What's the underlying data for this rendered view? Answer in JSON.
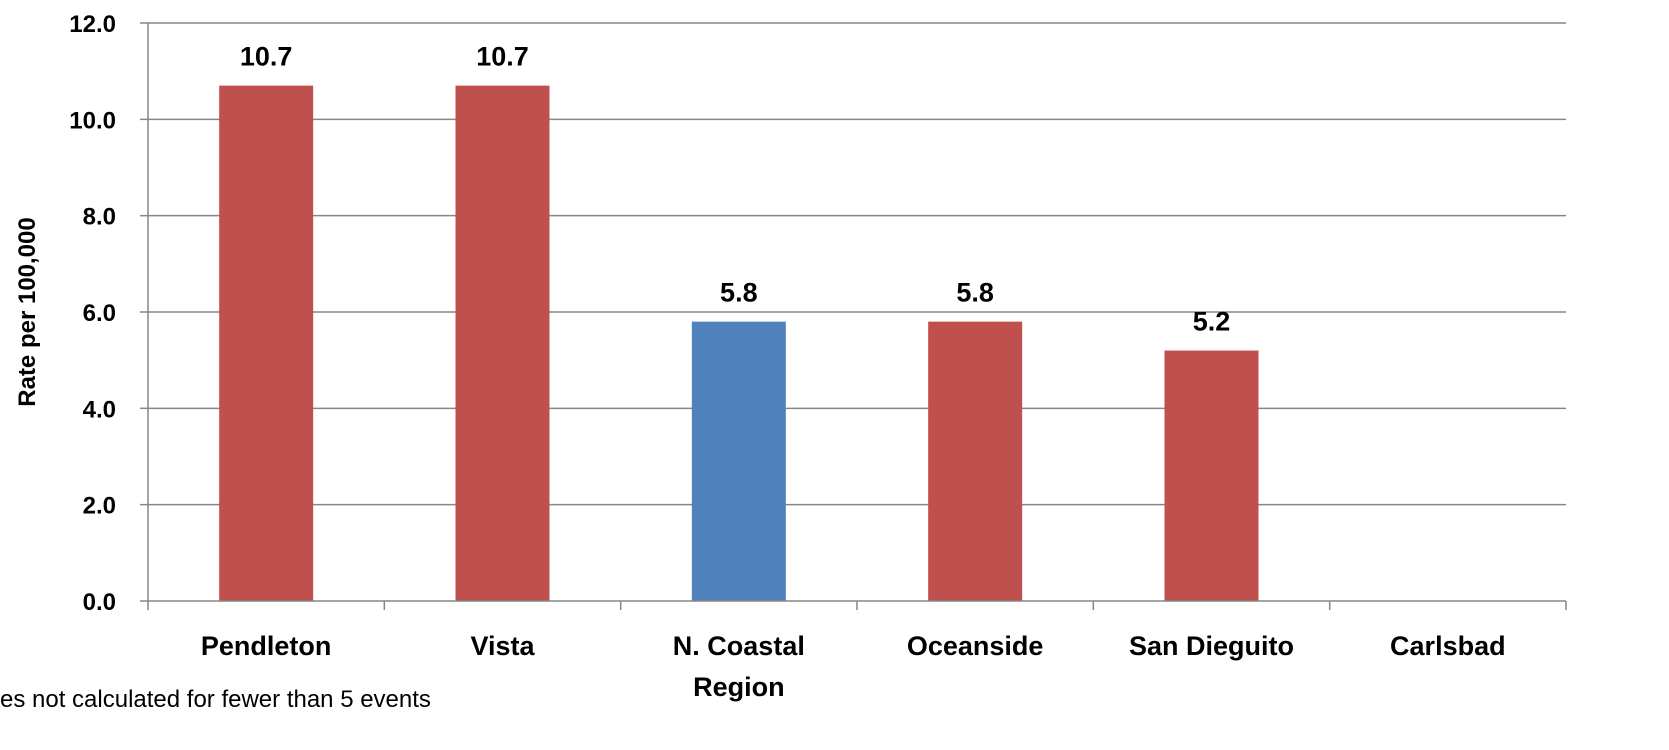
{
  "chart_data": {
    "type": "bar",
    "categories": [
      "Pendleton",
      "Vista",
      "N. Coastal Region",
      "Oceanside",
      "San Dieguito",
      "Carlsbad"
    ],
    "category_lines": [
      [
        "Pendleton"
      ],
      [
        "Vista"
      ],
      [
        "N. Coastal",
        "Region"
      ],
      [
        "Oceanside"
      ],
      [
        "San Dieguito"
      ],
      [
        "Carlsbad"
      ]
    ],
    "values": [
      10.7,
      10.7,
      5.8,
      5.8,
      5.2,
      null
    ],
    "data_labels": [
      "10.7",
      "10.7",
      "5.8",
      "5.8",
      "5.2",
      ""
    ],
    "bar_colors": [
      "#C0504D",
      "#C0504D",
      "#4F81BD",
      "#C0504D",
      "#C0504D",
      "#C0504D"
    ],
    "title": "",
    "xlabel": "",
    "ylabel": "Rate per 100,000",
    "ylim": [
      0,
      12
    ],
    "yticks": [
      "0.0",
      "2.0",
      "4.0",
      "6.0",
      "8.0",
      "10.0",
      "12.0"
    ],
    "ytick_values": [
      0,
      2,
      4,
      6,
      8,
      10,
      12
    ],
    "grid": true,
    "gridline_color": "#868686"
  },
  "footnote": "es not calculated for fewer than 5 events"
}
